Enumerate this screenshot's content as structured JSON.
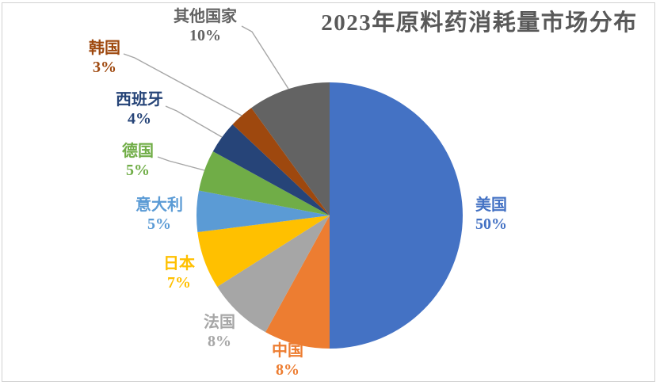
{
  "chart_data": {
    "type": "pie",
    "title": "2023年原料药消耗量市场分布",
    "start_angle_deg": 0,
    "direction": "clockwise",
    "legend_position": "none",
    "label_style": "outside, category name over percent, text colored to match slice",
    "segments": [
      {
        "slug": "usa",
        "label": "美国",
        "value": 50,
        "display": "50%",
        "color": "#4472C4"
      },
      {
        "slug": "china",
        "label": "中国",
        "value": 8,
        "display": "8%",
        "color": "#ED7D31"
      },
      {
        "slug": "france",
        "label": "法国",
        "value": 8,
        "display": "8%",
        "color": "#A6A6A6"
      },
      {
        "slug": "japan",
        "label": "日本",
        "value": 7,
        "display": "7%",
        "color": "#FFC000"
      },
      {
        "slug": "italy",
        "label": "意大利",
        "value": 5,
        "display": "5%",
        "color": "#5B9BD5"
      },
      {
        "slug": "germany",
        "label": "德国",
        "value": 5,
        "display": "5%",
        "color": "#70AD47"
      },
      {
        "slug": "spain",
        "label": "西班牙",
        "value": 4,
        "display": "4%",
        "color": "#264478"
      },
      {
        "slug": "south-korea",
        "label": "韩国",
        "value": 3,
        "display": "3%",
        "color": "#9E480E"
      },
      {
        "slug": "other-countries",
        "label": "其他国家",
        "value": 10,
        "display": "10%",
        "color": "#636363"
      }
    ]
  },
  "style": {
    "title_color": "#595959",
    "leader_line_color": "#A6A6A6",
    "frame_border_color": "#D1D1D1",
    "background": "#FFFFFF"
  }
}
